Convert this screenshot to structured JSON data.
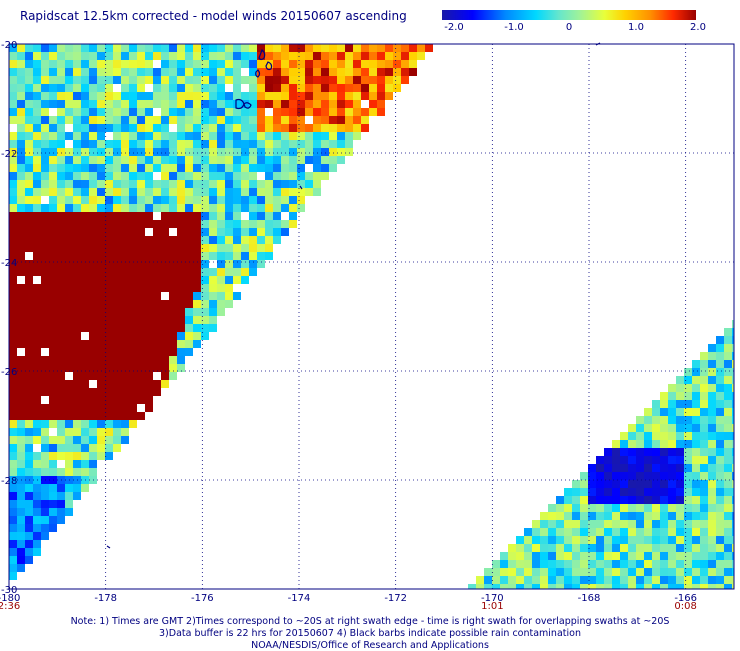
{
  "title": "Rapidscat 12.5km corrected - model winds 20150607 ascending",
  "colorbar": {
    "labels": [
      "-2.0",
      "-1.0",
      "0",
      "1.0",
      "2.0"
    ],
    "values": [
      -2.0,
      -1.0,
      0,
      1.0,
      2.0
    ],
    "min": -2.0,
    "max": 2.0,
    "colors": [
      "#1a1aa8",
      "#0000ff",
      "#0088ff",
      "#00d8ff",
      "#66e6cc",
      "#9ef29a",
      "#e8ff3a",
      "#ffd200",
      "#ff9000",
      "#ff2a00",
      "#990000"
    ]
  },
  "map": {
    "lon_range": [
      -180,
      -165
    ],
    "lat_range": [
      -30,
      -20
    ],
    "lon_tick_labels": [
      "-180",
      "-178",
      "-176",
      "-174",
      "-172",
      "-170",
      "-168",
      "-166"
    ],
    "lon_ticks": [
      -180,
      -178,
      -176,
      -174,
      -172,
      -170,
      -168,
      -166
    ],
    "lat_tick_labels": [
      "-20",
      "-22",
      "-24",
      "-26",
      "-28",
      "-30"
    ],
    "lat_ticks": [
      -20,
      -22,
      -24,
      -26,
      -28,
      -30
    ],
    "time_labels": [
      {
        "text": "2:36",
        "lon": -180
      },
      {
        "text": "1:01",
        "lon": -170
      },
      {
        "text": "0:08",
        "lon": -166
      }
    ]
  },
  "notes": [
    "Note: 1) Times are GMT 2)Times correspond to ~20S at right swath edge - time is right swath for overlapping swaths at ~20S",
    "3)Data buffer is 22 hrs for 20150607 4) Black barbs indicate possible rain contamination",
    "NOAA/NESDIS/Office of Research and Applications"
  ]
}
